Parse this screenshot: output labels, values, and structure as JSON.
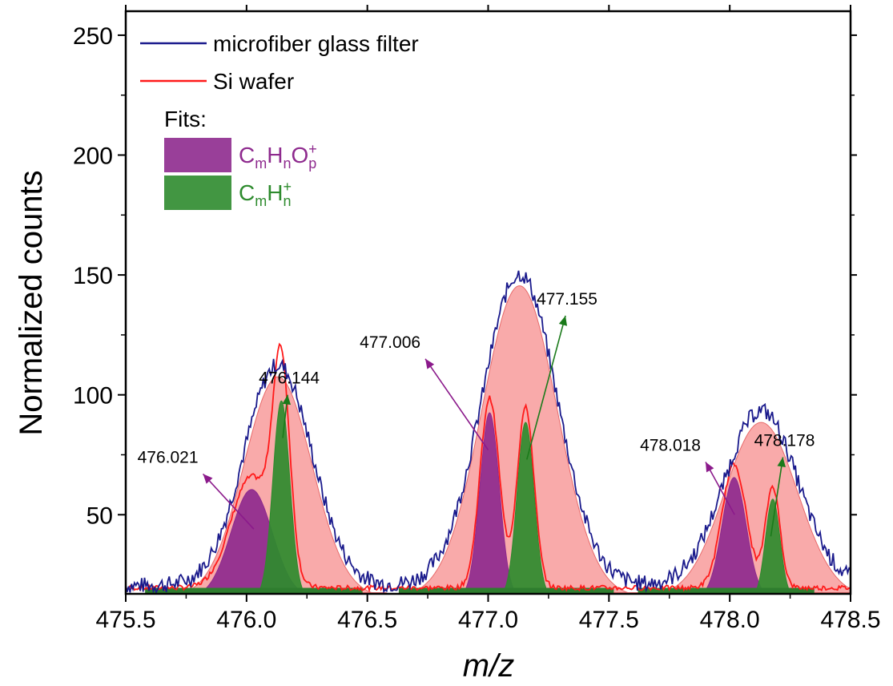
{
  "chart_data": {
    "type": "line",
    "xlabel": "m/z",
    "ylabel": "Normalized counts",
    "xlim": [
      475.5,
      478.5
    ],
    "ylim": [
      17,
      260
    ],
    "x_ticks": [
      "475.5",
      "476.0",
      "476.5",
      "477.0",
      "477.5",
      "478.0",
      "478.5"
    ],
    "y_ticks": [
      "50",
      "100",
      "150",
      "200",
      "250"
    ],
    "legend": {
      "placement": "top-left",
      "entries": [
        {
          "label": "microfiber glass filter",
          "color": "#1a1a8c"
        },
        {
          "label": "Si wafer",
          "color": "#ff1a1a"
        }
      ],
      "fits_title": "Fits:",
      "fits": [
        {
          "label_main": [
            "C",
            "H",
            "O"
          ],
          "label_sub": [
            "m",
            "n",
            "p"
          ],
          "label_sup": "+",
          "color": "#8e2a8e"
        },
        {
          "label_main": [
            "C",
            "H"
          ],
          "label_sub": [
            "m",
            "n"
          ],
          "label_sup": "+",
          "color": "#2e8b2e"
        }
      ]
    },
    "envelopes": [
      {
        "center": 476.13,
        "height": 92,
        "sigma": 0.14
      },
      {
        "center": 477.13,
        "height": 130,
        "sigma": 0.155
      },
      {
        "center": 478.13,
        "height": 73,
        "sigma": 0.15
      }
    ],
    "fit_peaks": [
      {
        "label": "476.021",
        "center": 476.021,
        "height": 45,
        "sigma": 0.085,
        "group": "CmHnOp+",
        "color": "#8e2a8e"
      },
      {
        "label": "476.144",
        "center": 476.144,
        "height": 82,
        "sigma": 0.035,
        "group": "CmHn+",
        "color": "#2e8b2e"
      },
      {
        "label": "477.006",
        "center": 477.006,
        "height": 77,
        "sigma": 0.04,
        "group": "CmHnOp+",
        "color": "#8e2a8e"
      },
      {
        "label": "477.155",
        "center": 477.155,
        "height": 73,
        "sigma": 0.035,
        "group": "CmHn+",
        "color": "#2e8b2e"
      },
      {
        "label": "478.018",
        "center": 478.018,
        "height": 50,
        "sigma": 0.05,
        "group": "CmHnOp+",
        "color": "#8e2a8e"
      },
      {
        "label": "478.178",
        "center": 478.178,
        "height": 41,
        "sigma": 0.03,
        "group": "CmHn+",
        "color": "#2e8b2e"
      }
    ],
    "annotations": [
      {
        "text": "476.021",
        "from": [
          476.03,
          44
        ],
        "to": [
          475.82,
          67
        ],
        "color": "#8b1a8b"
      },
      {
        "text": "476.144",
        "from": [
          476.15,
          82
        ],
        "to": [
          476.17,
          100
        ],
        "color": "#1a7a1a"
      },
      {
        "text": "477.006",
        "from": [
          477.0,
          77
        ],
        "to": [
          476.74,
          115
        ],
        "color": "#8b1a8b"
      },
      {
        "text": "477.155",
        "from": [
          477.16,
          73
        ],
        "to": [
          477.32,
          133
        ],
        "color": "#1a7a1a"
      },
      {
        "text": "478.018",
        "from": [
          478.02,
          50
        ],
        "to": [
          477.9,
          72
        ],
        "color": "#8b1a8b"
      },
      {
        "text": "478.178",
        "from": [
          478.17,
          41
        ],
        "to": [
          478.22,
          74
        ],
        "color": "#1a7a1a"
      }
    ],
    "baseline": 17.5,
    "envelope_color": "#f78e8e"
  }
}
